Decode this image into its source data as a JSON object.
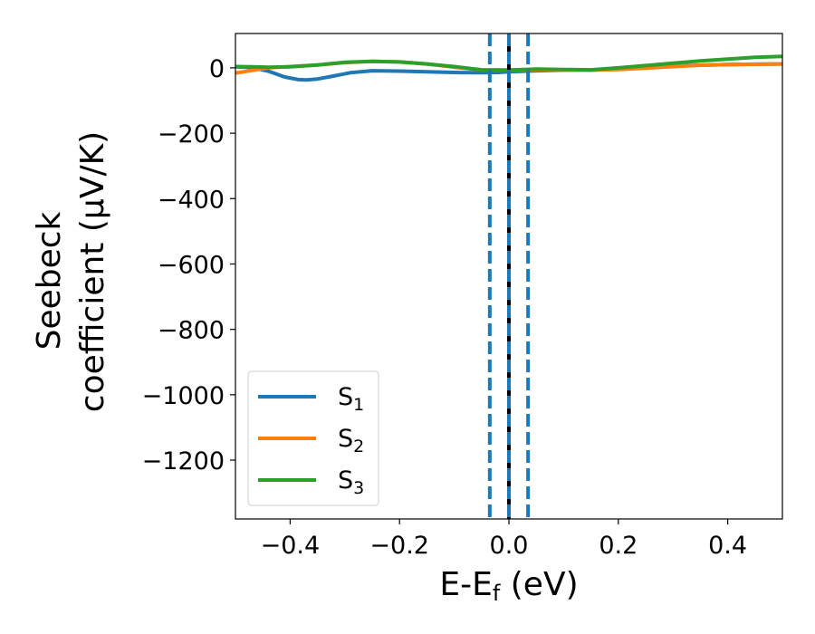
{
  "chart_data": {
    "type": "line",
    "xlabel": "E-E",
    "xlabel_sub": "f",
    "xlabel_unit": " (eV)",
    "ylabel_line1": "Seebeck",
    "ylabel_line2": "coefficient  (μV/K)",
    "xlim": [
      -0.5,
      0.5
    ],
    "ylim": [
      -1380,
      105
    ],
    "x_ticks": [
      -0.4,
      -0.2,
      0.0,
      0.2,
      0.4
    ],
    "x_tick_labels": [
      "−0.4",
      "−0.2",
      "0.0",
      "0.2",
      "0.4"
    ],
    "y_ticks": [
      0,
      -200,
      -400,
      -600,
      -800,
      -1000,
      -1200
    ],
    "y_tick_labels": [
      "0",
      "−200",
      "−400",
      "−600",
      "−800",
      "−1000",
      "−1200"
    ],
    "grid": false,
    "legend_position": "lower-left",
    "vertical_lines": [
      {
        "x": -0.035,
        "style": "dashed",
        "color": "#1f77b4"
      },
      {
        "x": 0.0,
        "style": "solid",
        "color": "#000000"
      },
      {
        "x": 0.0,
        "style": "dashed",
        "color": "#1f77b4"
      },
      {
        "x": 0.035,
        "style": "dashed",
        "color": "#1f77b4"
      }
    ],
    "series": [
      {
        "name": "S",
        "sub": "1",
        "color": "#1f77b4",
        "x": [
          -0.5,
          -0.47,
          -0.44,
          -0.41,
          -0.385,
          -0.37,
          -0.35,
          -0.32,
          -0.29,
          -0.25,
          -0.2,
          -0.15,
          -0.1,
          -0.05,
          -0.02,
          0.0,
          0.05,
          0.1,
          0.15,
          0.2,
          0.25,
          0.3,
          0.35,
          0.4,
          0.45,
          0.5
        ],
        "y": [
          3,
          1,
          -10,
          -28,
          -36,
          -37,
          -34,
          -25,
          -15,
          -9,
          -10,
          -12,
          -14,
          -15,
          -14,
          -12,
          -9,
          -7,
          -7,
          -4,
          0,
          5,
          8,
          10,
          11,
          12
        ]
      },
      {
        "name": "S",
        "sub": "2",
        "color": "#ff7f0e",
        "x": [
          -0.5,
          -0.47,
          -0.44,
          -0.4,
          -0.35,
          -0.3,
          -0.25,
          -0.2,
          -0.15,
          -0.1,
          -0.05,
          0.0,
          0.05,
          0.1,
          0.15,
          0.2,
          0.25,
          0.3,
          0.35,
          0.4,
          0.45,
          0.5
        ],
        "y": [
          -16,
          -8,
          0,
          4,
          9,
          16,
          20,
          18,
          12,
          2,
          -6,
          -7,
          -6,
          -6,
          -7,
          -5,
          -1,
          4,
          8,
          10,
          11,
          12
        ]
      },
      {
        "name": "S",
        "sub": "3",
        "color": "#2ca02c",
        "x": [
          -0.5,
          -0.47,
          -0.44,
          -0.4,
          -0.35,
          -0.3,
          -0.25,
          -0.2,
          -0.15,
          -0.1,
          -0.05,
          0.0,
          0.05,
          0.1,
          0.15,
          0.2,
          0.25,
          0.3,
          0.35,
          0.4,
          0.45,
          0.5
        ],
        "y": [
          4,
          3,
          2,
          3,
          9,
          17,
          20,
          18,
          12,
          4,
          -6,
          -7,
          -4,
          -5,
          -6,
          0,
          7,
          14,
          21,
          27,
          32,
          35
        ]
      }
    ]
  }
}
